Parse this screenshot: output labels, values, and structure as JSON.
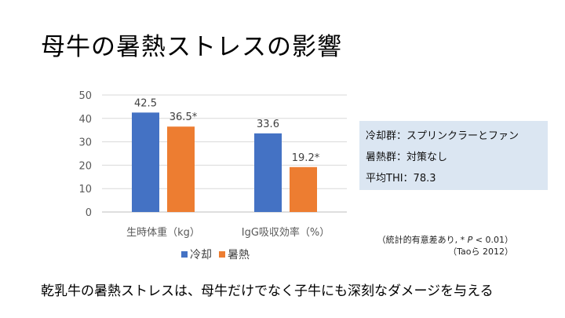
{
  "slide": {
    "title": "母牛の暑熱ストレスの影響",
    "footer": "乾乳牛の暑熱ストレスは、母牛だけでなく子牛にも深刻なダメージを与える"
  },
  "info_box": {
    "lines": [
      "冷却群：スプリンクラーとファン",
      "暑熱群：対策なし",
      "平均THI：78.3"
    ]
  },
  "note": {
    "line1_prefix": "（統計的有意差あり, * ",
    "line1_p": "P",
    "line1_suffix": " < 0.01）",
    "line2": "（Taoら 2012）"
  },
  "chart_data": {
    "type": "bar",
    "categories": [
      "生時体重（kg）",
      "IgG吸収効率（%）"
    ],
    "series": [
      {
        "name": "冷却",
        "values": [
          42.5,
          33.6
        ],
        "labels": [
          "42.5",
          "33.6"
        ],
        "color": "#4472c4"
      },
      {
        "name": "暑熱",
        "values": [
          36.5,
          19.2
        ],
        "labels": [
          "36.5*",
          "19.2*"
        ],
        "color": "#ed7d31"
      }
    ],
    "ylim": [
      0,
      50
    ],
    "yticks": [
      0,
      10,
      20,
      30,
      40,
      50
    ],
    "grid": true,
    "legend": "bottom"
  }
}
